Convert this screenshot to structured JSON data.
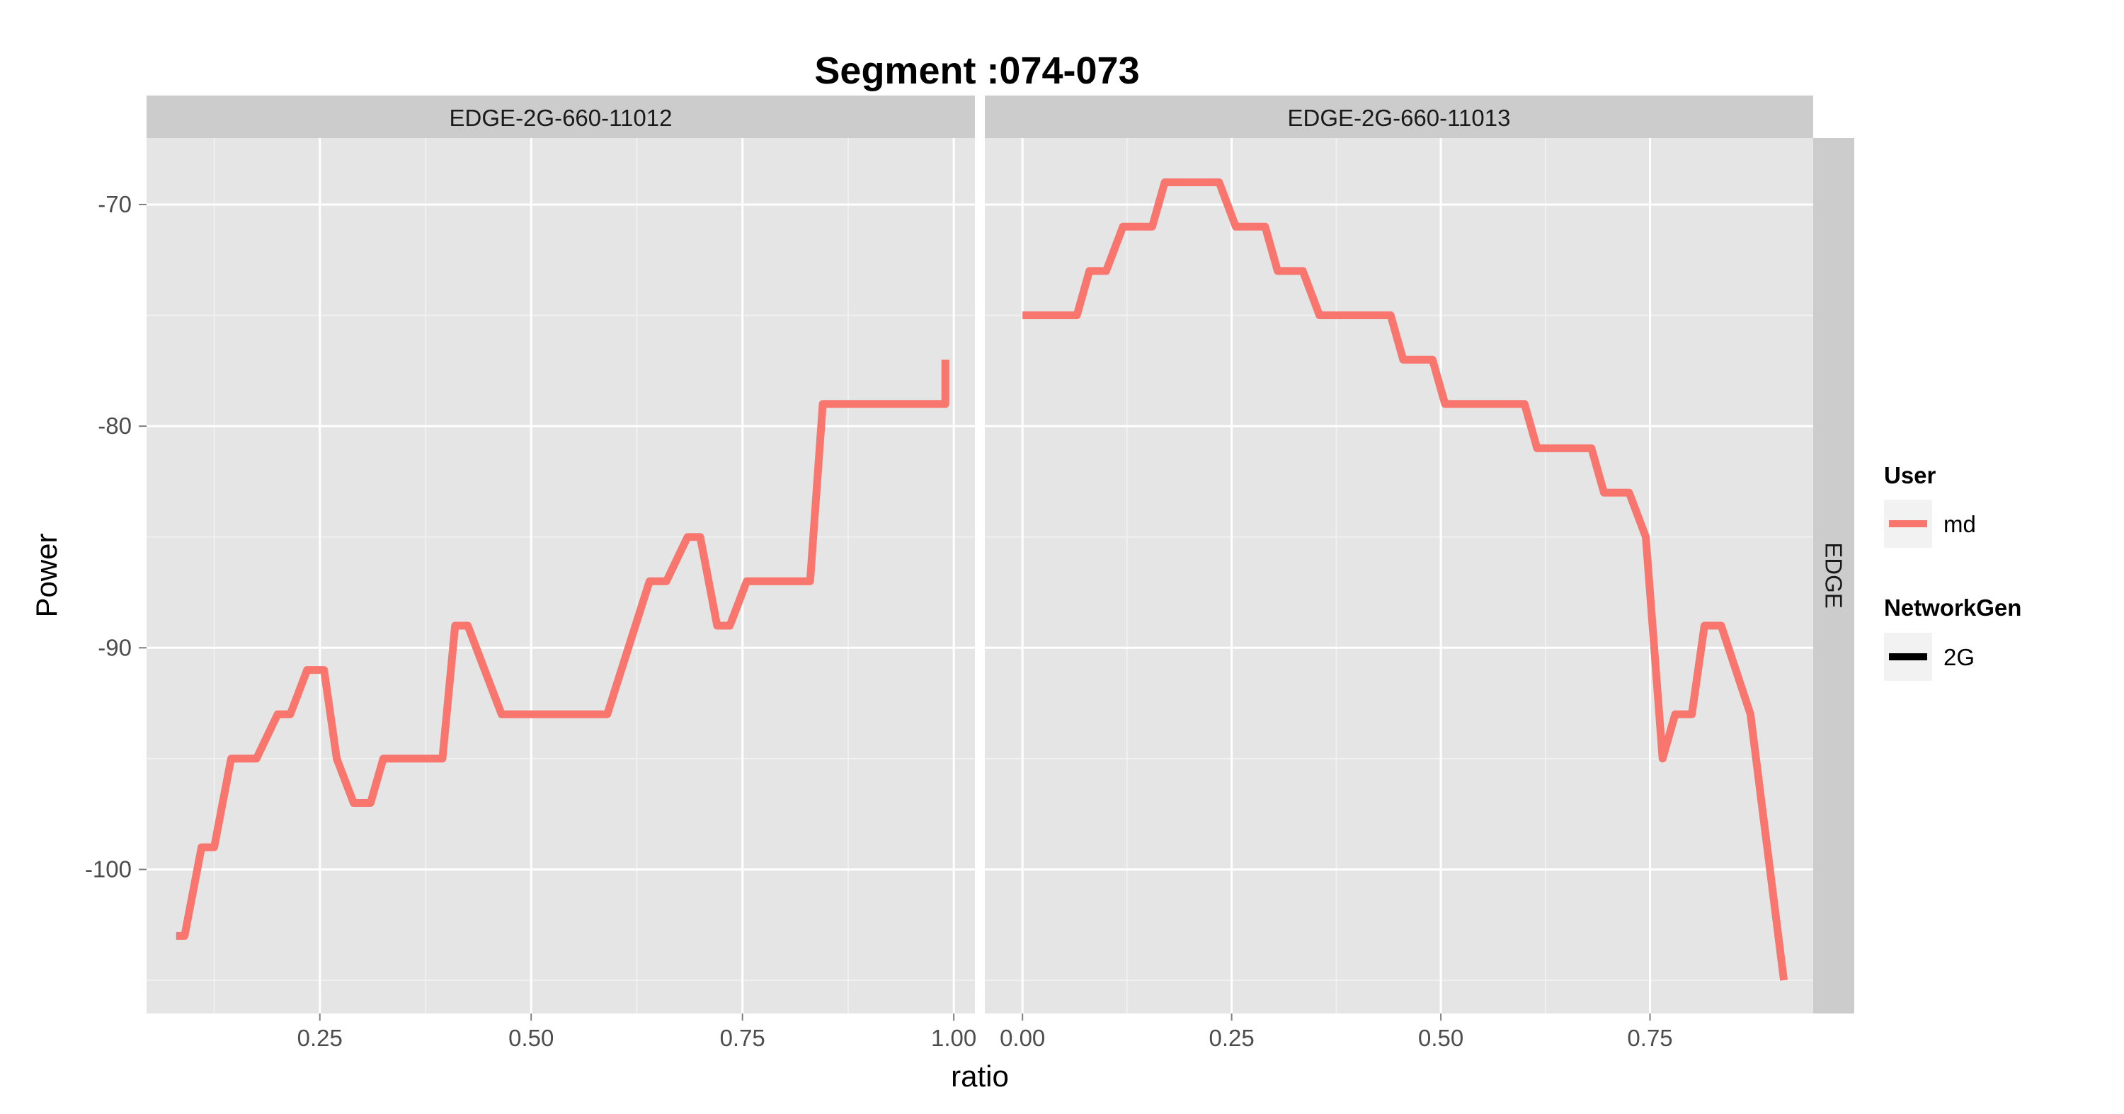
{
  "chart_data": {
    "type": "line",
    "title": "Segment :074-073",
    "xlabel": "ratio",
    "ylabel": "Power",
    "ylim": [
      -106.5,
      -67
    ],
    "y_ticks": [
      -70,
      -80,
      -90,
      -100
    ],
    "y_tick_labels": [
      "-70",
      "-80",
      "-90",
      "-100"
    ],
    "row_strip": "EDGE",
    "grid": true,
    "legend_position": "right",
    "legend": {
      "user_title": "User",
      "user_entries": [
        {
          "label": "md",
          "color": "#F8766D"
        }
      ],
      "network_title": "NetworkGen",
      "network_entries": [
        {
          "label": "2G",
          "color": "#000000"
        }
      ]
    },
    "series_color": "#F8766D",
    "facets": [
      {
        "label": "EDGE-2G-660-11012",
        "xlim": [
          0.045,
          1.025
        ],
        "x_ticks": [
          0.25,
          0.5,
          0.75,
          1.0
        ],
        "x_tick_labels": [
          "0.25",
          "0.50",
          "0.75",
          "1.00"
        ],
        "series": [
          {
            "name": "md",
            "points": [
              [
                0.08,
                -103
              ],
              [
                0.09,
                -103
              ],
              [
                0.11,
                -99
              ],
              [
                0.125,
                -99
              ],
              [
                0.145,
                -95
              ],
              [
                0.175,
                -95
              ],
              [
                0.2,
                -93
              ],
              [
                0.215,
                -93
              ],
              [
                0.235,
                -91
              ],
              [
                0.255,
                -91
              ],
              [
                0.27,
                -95
              ],
              [
                0.29,
                -97
              ],
              [
                0.31,
                -97
              ],
              [
                0.325,
                -95
              ],
              [
                0.395,
                -95
              ],
              [
                0.41,
                -89
              ],
              [
                0.425,
                -89
              ],
              [
                0.465,
                -93
              ],
              [
                0.59,
                -93
              ],
              [
                0.64,
                -87
              ],
              [
                0.66,
                -87
              ],
              [
                0.685,
                -85
              ],
              [
                0.7,
                -85
              ],
              [
                0.72,
                -89
              ],
              [
                0.735,
                -89
              ],
              [
                0.755,
                -87
              ],
              [
                0.83,
                -87
              ],
              [
                0.845,
                -79
              ],
              [
                0.99,
                -79
              ],
              [
                0.99,
                -77
              ]
            ]
          }
        ]
      },
      {
        "label": "EDGE-2G-660-11013",
        "xlim": [
          -0.045,
          0.945
        ],
        "x_ticks": [
          0.0,
          0.25,
          0.5,
          0.75
        ],
        "x_tick_labels": [
          "0.00",
          "0.25",
          "0.50",
          "0.75"
        ],
        "series": [
          {
            "name": "md",
            "points": [
              [
                0.0,
                -75
              ],
              [
                0.065,
                -75
              ],
              [
                0.08,
                -73
              ],
              [
                0.1,
                -73
              ],
              [
                0.12,
                -71
              ],
              [
                0.155,
                -71
              ],
              [
                0.17,
                -69
              ],
              [
                0.235,
                -69
              ],
              [
                0.255,
                -71
              ],
              [
                0.29,
                -71
              ],
              [
                0.305,
                -73
              ],
              [
                0.335,
                -73
              ],
              [
                0.355,
                -75
              ],
              [
                0.44,
                -75
              ],
              [
                0.455,
                -77
              ],
              [
                0.49,
                -77
              ],
              [
                0.505,
                -79
              ],
              [
                0.6,
                -79
              ],
              [
                0.615,
                -81
              ],
              [
                0.68,
                -81
              ],
              [
                0.695,
                -83
              ],
              [
                0.725,
                -83
              ],
              [
                0.745,
                -85
              ],
              [
                0.765,
                -95
              ],
              [
                0.78,
                -93
              ],
              [
                0.8,
                -93
              ],
              [
                0.815,
                -89
              ],
              [
                0.835,
                -89
              ],
              [
                0.87,
                -93
              ],
              [
                0.91,
                -105
              ]
            ]
          }
        ]
      }
    ]
  }
}
